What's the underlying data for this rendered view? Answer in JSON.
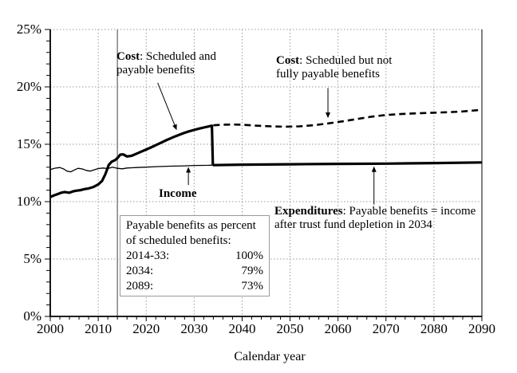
{
  "chart_data": {
    "type": "line",
    "xlabel": "Calendar year",
    "ylabel": "",
    "xlim": [
      2000,
      2090
    ],
    "ylim": [
      0,
      25
    ],
    "x_major_ticks": [
      2000,
      2010,
      2020,
      2030,
      2040,
      2050,
      2060,
      2070,
      2080,
      2090
    ],
    "x_tick_labels": [
      "2000",
      "2010",
      "2020",
      "2030",
      "2040",
      "2050",
      "2060",
      "2070",
      "2080",
      "2090"
    ],
    "x_minor_step": 2,
    "y_major_ticks": [
      0,
      5,
      10,
      15,
      20,
      25
    ],
    "y_tick_labels": [
      "0%",
      "5%",
      "10%",
      "15%",
      "20%",
      "25%"
    ],
    "y_minor_step": 1,
    "grid": "dotted gray at major ticks, right border solid gray",
    "historical_boundary_year": 2014,
    "colors": {
      "line": "#000000",
      "grid": "#999999",
      "boundary_line": "#808080",
      "box_border": "#9a9a9a"
    },
    "series": [
      {
        "name": "cost-scheduled-and-payable",
        "style": "thick-solid",
        "points": [
          [
            2000,
            10.4
          ],
          [
            2000.8,
            10.55
          ],
          [
            2001.5,
            10.65
          ],
          [
            2002.3,
            10.78
          ],
          [
            2003,
            10.84
          ],
          [
            2004,
            10.78
          ],
          [
            2004.8,
            10.9
          ],
          [
            2005.5,
            10.96
          ],
          [
            2006.3,
            11.0
          ],
          [
            2007,
            11.08
          ],
          [
            2008,
            11.15
          ],
          [
            2009,
            11.28
          ],
          [
            2010,
            11.5
          ],
          [
            2010.8,
            11.8
          ],
          [
            2011.5,
            12.4
          ],
          [
            2012.2,
            13.2
          ],
          [
            2012.8,
            13.48
          ],
          [
            2013.5,
            13.62
          ],
          [
            2014,
            13.8
          ],
          [
            2014.6,
            14.1
          ],
          [
            2015.2,
            14.12
          ],
          [
            2016,
            13.94
          ],
          [
            2017,
            14.0
          ],
          [
            2018,
            14.18
          ],
          [
            2019,
            14.36
          ],
          [
            2020,
            14.54
          ],
          [
            2021,
            14.72
          ],
          [
            2022,
            14.92
          ],
          [
            2023,
            15.12
          ],
          [
            2024,
            15.32
          ],
          [
            2025,
            15.5
          ],
          [
            2026,
            15.68
          ],
          [
            2027,
            15.84
          ],
          [
            2028,
            16.0
          ],
          [
            2029,
            16.13
          ],
          [
            2030,
            16.25
          ],
          [
            2031,
            16.36
          ],
          [
            2032,
            16.46
          ],
          [
            2033,
            16.55
          ],
          [
            2033.7,
            16.62
          ],
          [
            2033.9,
            13.18
          ]
        ]
      },
      {
        "name": "expenditures-payable-benefits",
        "style": "thick-solid",
        "points": [
          [
            2033.9,
            13.18
          ],
          [
            2040,
            13.22
          ],
          [
            2050,
            13.26
          ],
          [
            2060,
            13.29
          ],
          [
            2070,
            13.31
          ],
          [
            2080,
            13.36
          ],
          [
            2090,
            13.42
          ]
        ]
      },
      {
        "name": "income",
        "style": "thin-solid",
        "points": [
          [
            2000,
            12.8
          ],
          [
            2001,
            12.92
          ],
          [
            2002,
            12.97
          ],
          [
            2002.8,
            12.85
          ],
          [
            2003.5,
            12.66
          ],
          [
            2004.3,
            12.6
          ],
          [
            2005,
            12.76
          ],
          [
            2005.8,
            12.9
          ],
          [
            2006.7,
            12.85
          ],
          [
            2007.5,
            12.72
          ],
          [
            2008.3,
            12.66
          ],
          [
            2009.2,
            12.78
          ],
          [
            2010,
            12.88
          ],
          [
            2011,
            12.93
          ],
          [
            2012,
            12.88
          ],
          [
            2013,
            13.0
          ],
          [
            2014,
            12.9
          ],
          [
            2015,
            12.86
          ],
          [
            2016,
            12.93
          ],
          [
            2017,
            12.95
          ],
          [
            2018,
            12.97
          ],
          [
            2020,
            13.01
          ],
          [
            2022,
            13.05
          ],
          [
            2025,
            13.09
          ],
          [
            2028,
            13.12
          ],
          [
            2030,
            13.15
          ],
          [
            2033,
            13.17
          ],
          [
            2034,
            13.18
          ],
          [
            2040,
            13.22
          ],
          [
            2050,
            13.26
          ],
          [
            2060,
            13.29
          ],
          [
            2070,
            13.31
          ],
          [
            2080,
            13.36
          ],
          [
            2090,
            13.42
          ]
        ]
      },
      {
        "name": "cost-scheduled-not-fully-payable",
        "style": "thick-dashed",
        "points": [
          [
            2034,
            16.65
          ],
          [
            2036,
            16.7
          ],
          [
            2038,
            16.72
          ],
          [
            2040,
            16.7
          ],
          [
            2043,
            16.62
          ],
          [
            2046,
            16.56
          ],
          [
            2049,
            16.53
          ],
          [
            2052,
            16.56
          ],
          [
            2055,
            16.66
          ],
          [
            2058,
            16.82
          ],
          [
            2061,
            17.0
          ],
          [
            2064,
            17.2
          ],
          [
            2067,
            17.4
          ],
          [
            2070,
            17.55
          ],
          [
            2073,
            17.63
          ],
          [
            2076,
            17.69
          ],
          [
            2080,
            17.75
          ],
          [
            2083,
            17.79
          ],
          [
            2086,
            17.86
          ],
          [
            2090,
            18.0
          ]
        ]
      }
    ],
    "arrows": [
      {
        "name": "cost-payable-arrow",
        "from": [
          2022.4,
          20.35
        ],
        "to": [
          2026.3,
          16.3
        ]
      },
      {
        "name": "cost-scheduled-arrow",
        "from": [
          2057.9,
          19.9
        ],
        "to": [
          2057.9,
          17.35
        ]
      },
      {
        "name": "income-arrow",
        "from": [
          2028.8,
          11.45
        ],
        "to": [
          2028.8,
          12.95
        ]
      },
      {
        "name": "expenditures-arrow",
        "from": [
          2067.5,
          9.75
        ],
        "to": [
          2067.5,
          13.0
        ]
      }
    ]
  },
  "labels": {
    "cost_payable": {
      "bold": "Cost",
      "line1_rest": ": Scheduled and",
      "line2": "payable benefits"
    },
    "cost_scheduled": {
      "bold": "Cost",
      "line1_rest": ": Scheduled but not",
      "line2": "fully payable benefits"
    },
    "income": {
      "text": "Income"
    },
    "expenditures": {
      "bold": "Expenditures",
      "line1_rest": ": Payable benefits = income",
      "line2": "after trust fund depletion in 2034"
    }
  },
  "note_box": {
    "line1": "Payable benefits as percent",
    "line2": "of scheduled benefits:",
    "rows": [
      {
        "label": "2014-33:",
        "value": "100%"
      },
      {
        "label": "2034:",
        "value": "79%"
      },
      {
        "label": "2089:",
        "value": "73%"
      }
    ]
  },
  "axis": {
    "xlabel": "Calendar year"
  }
}
